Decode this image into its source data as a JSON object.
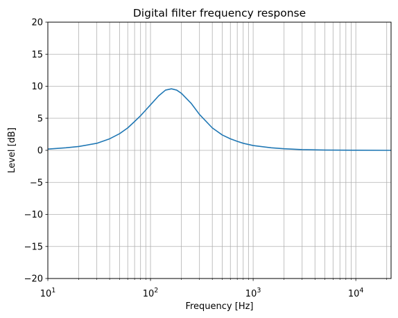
{
  "chart_data": {
    "type": "line",
    "title": "Digital filter frequency response",
    "xlabel": "Frequency [Hz]",
    "ylabel": "Level [dB]",
    "xscale": "log",
    "xlim": [
      10,
      22050
    ],
    "ylim": [
      -20,
      20
    ],
    "grid": true,
    "grid_minor_x": true,
    "line_color": "#1f77b4",
    "xticks": [
      {
        "value": 10,
        "base": "10",
        "exp": "1"
      },
      {
        "value": 100,
        "base": "10",
        "exp": "2"
      },
      {
        "value": 1000,
        "base": "10",
        "exp": "3"
      },
      {
        "value": 10000,
        "base": "10",
        "exp": "4"
      }
    ],
    "yticks": [
      {
        "value": 20,
        "label": "20"
      },
      {
        "value": 15,
        "label": "15"
      },
      {
        "value": 10,
        "label": "10"
      },
      {
        "value": 5,
        "label": "5"
      },
      {
        "value": 0,
        "label": "0"
      },
      {
        "value": -5,
        "label": "−5"
      },
      {
        "value": -10,
        "label": "−10"
      },
      {
        "value": -15,
        "label": "−15"
      },
      {
        "value": -20,
        "label": "−20"
      }
    ],
    "series": [
      {
        "x": [
          10,
          15,
          20,
          30,
          40,
          50,
          60,
          70,
          80,
          90,
          100,
          120,
          140,
          160,
          180,
          200,
          250,
          300,
          400,
          500,
          600,
          700,
          800,
          1000,
          1500,
          2000,
          3000,
          5000,
          10000,
          22050
        ],
        "y": [
          0.2,
          0.4,
          0.6,
          1.1,
          1.8,
          2.6,
          3.5,
          4.5,
          5.4,
          6.3,
          7.1,
          8.5,
          9.4,
          9.6,
          9.4,
          8.9,
          7.3,
          5.6,
          3.5,
          2.4,
          1.8,
          1.4,
          1.1,
          0.75,
          0.4,
          0.25,
          0.12,
          0.05,
          0.02,
          0.0
        ]
      }
    ]
  }
}
